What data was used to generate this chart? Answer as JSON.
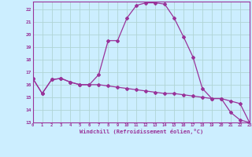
{
  "xlabel": "Windchill (Refroidissement éolien,°C)",
  "bg_color": "#cceeff",
  "grid_color": "#b0d4d4",
  "line_color": "#993399",
  "hours": [
    0,
    1,
    2,
    3,
    4,
    5,
    6,
    7,
    8,
    9,
    10,
    11,
    12,
    13,
    14,
    15,
    16,
    17,
    18,
    19,
    20,
    21,
    22,
    23
  ],
  "temp": [
    16.5,
    15.3,
    16.4,
    16.5,
    16.2,
    16.0,
    16.0,
    16.8,
    19.5,
    19.5,
    21.3,
    22.3,
    22.5,
    22.5,
    22.4,
    21.3,
    19.8,
    18.2,
    15.7,
    14.9,
    14.9,
    13.8,
    13.2,
    13.0
  ],
  "windchill": [
    16.5,
    15.3,
    16.4,
    16.5,
    16.2,
    16.0,
    16.0,
    16.0,
    15.9,
    15.8,
    15.7,
    15.6,
    15.5,
    15.4,
    15.3,
    15.3,
    15.2,
    15.1,
    15.0,
    14.9,
    14.9,
    14.7,
    14.5,
    13.0
  ],
  "ylim": [
    13,
    22.6
  ],
  "xlim": [
    0,
    23
  ],
  "yticks": [
    13,
    14,
    15,
    16,
    17,
    18,
    19,
    20,
    21,
    22
  ],
  "xticks": [
    0,
    1,
    2,
    3,
    4,
    5,
    6,
    7,
    8,
    9,
    10,
    11,
    12,
    13,
    14,
    15,
    16,
    17,
    18,
    19,
    20,
    21,
    22,
    23
  ]
}
